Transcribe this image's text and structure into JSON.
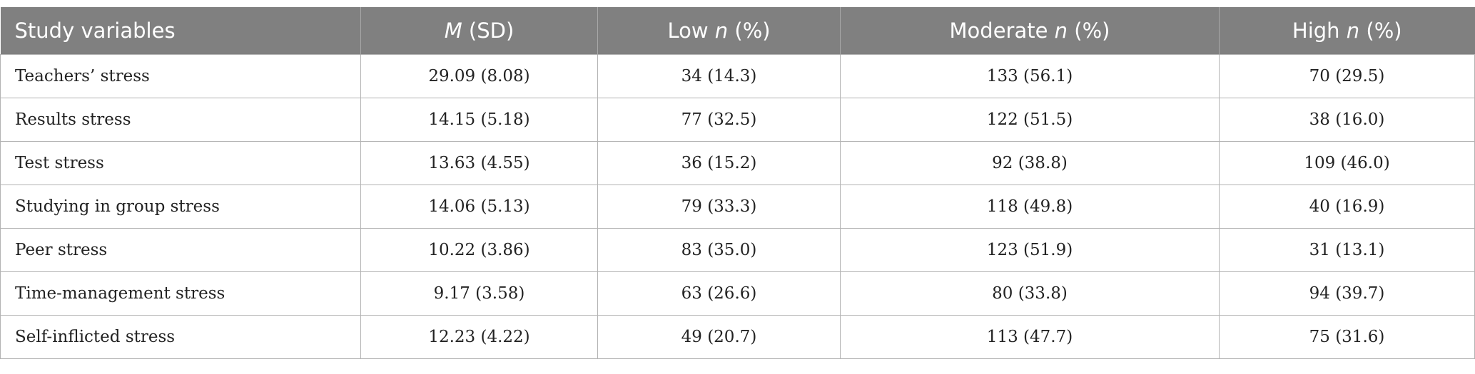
{
  "table": {
    "header": [
      [
        {
          "text": "Study variables"
        }
      ],
      [
        {
          "text": "M",
          "italic": true
        },
        {
          "text": " (SD)"
        }
      ],
      [
        {
          "text": "Low "
        },
        {
          "text": "n",
          "italic": true
        },
        {
          "text": " (%)"
        }
      ],
      [
        {
          "text": "Moderate "
        },
        {
          "text": "n",
          "italic": true
        },
        {
          "text": " (%)"
        }
      ],
      [
        {
          "text": "High "
        },
        {
          "text": "n",
          "italic": true
        },
        {
          "text": " (%)"
        }
      ]
    ],
    "rows": [
      [
        "Teachers’ stress",
        "29.09 (8.08)",
        "34 (14.3)",
        "133 (56.1)",
        "70 (29.5)"
      ],
      [
        "Results stress",
        "14.15 (5.18)",
        "77 (32.5)",
        "122 (51.5)",
        "38 (16.0)"
      ],
      [
        "Test stress",
        "13.63 (4.55)",
        "36 (15.2)",
        "92 (38.8)",
        "109 (46.0)"
      ],
      [
        "Studying in group stress",
        "14.06 (5.13)",
        "79 (33.3)",
        "118 (49.8)",
        "40 (16.9)"
      ],
      [
        "Peer stress",
        "10.22 (3.86)",
        "83 (35.0)",
        "123 (51.9)",
        "31 (13.1)"
      ],
      [
        "Time-management stress",
        "9.17 (3.58)",
        "63 (26.6)",
        "80 (33.8)",
        "94 (39.7)"
      ],
      [
        "Self-inflicted stress",
        "12.23 (4.22)",
        "49 (20.7)",
        "113 (47.7)",
        "75 (31.6)"
      ]
    ]
  }
}
